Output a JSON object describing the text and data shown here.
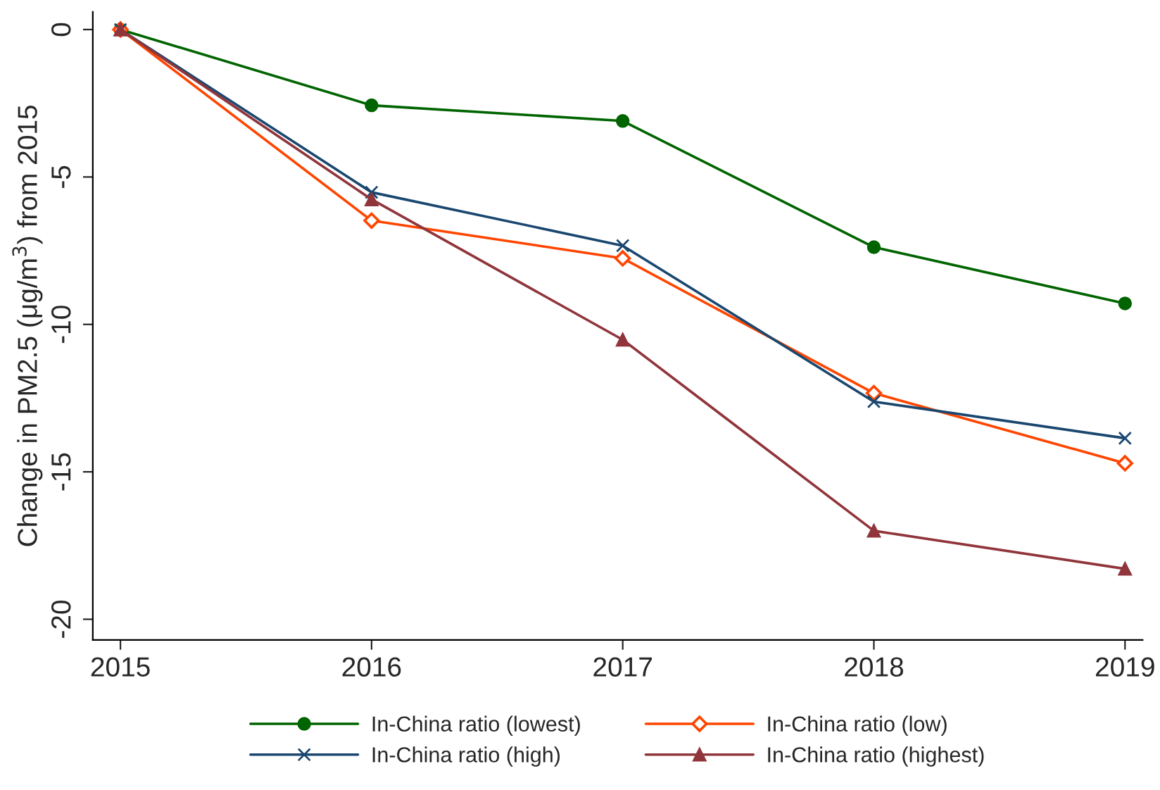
{
  "chart_data": {
    "type": "line",
    "ylabel": "Change in PM2.5 (μg/m$^{3}$) from 2015",
    "x": [
      2015,
      2016,
      2017,
      2018,
      2019
    ],
    "xlim": [
      2014.89,
      2019.07
    ],
    "xticks": [
      2015,
      2016,
      2017,
      2018,
      2019
    ],
    "ylim": [
      -20.7,
      0.6
    ],
    "yticks": [
      {
        "value": 0,
        "label": "0"
      },
      {
        "value": -5,
        "label": "-5"
      },
      {
        "value": -10,
        "label": "-10"
      },
      {
        "value": -15,
        "label": "-15"
      },
      {
        "value": -20,
        "label": "-20"
      }
    ],
    "grid": false,
    "legend": "bottom",
    "series": [
      {
        "name": "In-China ratio (lowest)",
        "color": "#006400",
        "marker": "circle",
        "values": [
          0,
          -2.57,
          -3.1,
          -7.38,
          -9.29
        ]
      },
      {
        "name": "In-China ratio (low)",
        "color": "#ff4500",
        "marker": "diamond",
        "values": [
          0,
          -6.48,
          -7.76,
          -12.33,
          -14.71
        ]
      },
      {
        "name": "In-China ratio (high)",
        "color": "#1a476f",
        "marker": "cross",
        "values": [
          0,
          -5.52,
          -7.33,
          -12.62,
          -13.86
        ]
      },
      {
        "name": "In-China ratio (highest)",
        "color": "#90353b",
        "marker": "triangle",
        "values": [
          0,
          -5.76,
          -10.52,
          -17.0,
          -18.29
        ]
      }
    ]
  }
}
